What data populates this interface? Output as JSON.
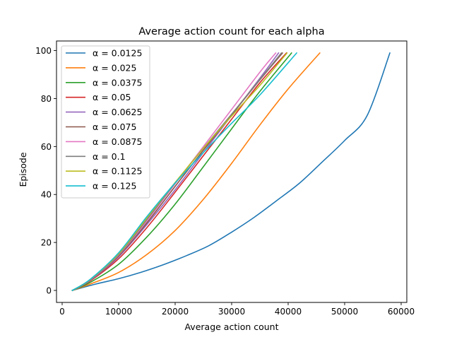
{
  "chart_data": {
    "type": "line",
    "title": "Average action count for each alpha",
    "xlabel": "Average action count",
    "ylabel": "Episode",
    "xlim": [
      -1000,
      61000
    ],
    "ylim": [
      -5,
      104
    ],
    "xticks": [
      0,
      10000,
      20000,
      30000,
      40000,
      50000,
      60000
    ],
    "xtick_labels": [
      "0",
      "10000",
      "20000",
      "30000",
      "40000",
      "50000",
      "60000"
    ],
    "yticks": [
      0,
      20,
      40,
      60,
      80,
      100
    ],
    "ytick_labels": [
      "0",
      "20",
      "40",
      "60",
      "80",
      "100"
    ],
    "grid": false,
    "legend_position": "upper-left",
    "series": [
      {
        "name": "α = 0.0125",
        "color": "#1f77b4",
        "x": [
          1800,
          6000,
          10000,
          14000,
          18000,
          22000,
          26000,
          30000,
          34000,
          38000,
          42000,
          46000,
          50000,
          54000,
          58000
        ],
        "y": [
          0,
          2.7,
          4.9,
          7.6,
          10.8,
          14.5,
          18.7,
          24.3,
          30.5,
          37.5,
          44.7,
          53.5,
          62.5,
          73.0,
          99
        ]
      },
      {
        "name": "α = 0.025",
        "color": "#ff7f0e",
        "x": [
          1800,
          5000,
          10000,
          15000,
          20000,
          25000,
          30000,
          35000,
          40000,
          45600
        ],
        "y": [
          0,
          2.7,
          7.5,
          15.0,
          25.0,
          38.0,
          53.0,
          69.0,
          84.0,
          99
        ]
      },
      {
        "name": "α = 0.0375",
        "color": "#2ca02c",
        "x": [
          1800,
          5000,
          10000,
          15000,
          20000,
          25000,
          30000,
          35000,
          40600
        ],
        "y": [
          0,
          3.4,
          10.9,
          22.3,
          36.0,
          51.6,
          67.4,
          83.0,
          99
        ]
      },
      {
        "name": "α = 0.05",
        "color": "#d62728",
        "x": [
          1800,
          5000,
          10000,
          15000,
          20000,
          25000,
          30000,
          35000,
          39700
        ],
        "y": [
          0,
          4.0,
          13.2,
          26.2,
          41.0,
          56.2,
          71.4,
          86.6,
          99
        ]
      },
      {
        "name": "α = 0.0625",
        "color": "#9467bd",
        "x": [
          1800,
          5000,
          10000,
          15000,
          20000,
          25000,
          30000,
          35000,
          38300
        ],
        "y": [
          0,
          4.2,
          14.0,
          27.5,
          42.0,
          57.5,
          73.0,
          88.5,
          99
        ]
      },
      {
        "name": "α = 0.075",
        "color": "#8c564b",
        "x": [
          1800,
          5000,
          10000,
          15000,
          20000,
          25000,
          30000,
          35000,
          39000
        ],
        "y": [
          0,
          4.3,
          14.4,
          28.2,
          43.4,
          58.5,
          73.2,
          87.8,
          99
        ]
      },
      {
        "name": "α = 0.0875",
        "color": "#e377c2",
        "x": [
          1800,
          5000,
          10000,
          15000,
          20000,
          25000,
          30000,
          35000,
          37800
        ],
        "y": [
          0,
          4.4,
          14.8,
          29.0,
          44.5,
          60.0,
          75.5,
          91.0,
          99
        ]
      },
      {
        "name": "α = 0.1",
        "color": "#7f7f7f",
        "x": [
          1800,
          5000,
          10000,
          15000,
          20000,
          25000,
          30000,
          35000,
          38800
        ],
        "y": [
          0,
          4.5,
          15.0,
          29.6,
          44.8,
          59.3,
          73.5,
          88.0,
          99
        ]
      },
      {
        "name": "α = 0.1125",
        "color": "#bcbd22",
        "x": [
          1800,
          5000,
          10000,
          15000,
          20000,
          25000,
          30000,
          35000,
          39800
        ],
        "y": [
          0,
          4.6,
          15.3,
          30.2,
          45.0,
          59.3,
          72.7,
          85.5,
          99
        ]
      },
      {
        "name": "α = 0.125",
        "color": "#17becf",
        "x": [
          1800,
          5000,
          10000,
          15000,
          20000,
          25000,
          30000,
          35000,
          41500
        ],
        "y": [
          0,
          4.7,
          15.7,
          30.8,
          44.8,
          57.5,
          69.7,
          81.5,
          99
        ]
      }
    ]
  }
}
